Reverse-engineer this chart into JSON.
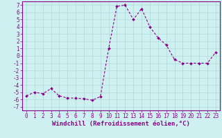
{
  "x": [
    0,
    1,
    2,
    3,
    4,
    5,
    6,
    7,
    8,
    9,
    10,
    11,
    12,
    13,
    14,
    15,
    16,
    17,
    18,
    19,
    20,
    21,
    22,
    23
  ],
  "y": [
    -5.5,
    -5.0,
    -5.2,
    -4.5,
    -5.5,
    -5.8,
    -5.8,
    -5.9,
    -6.1,
    -5.6,
    1.0,
    6.8,
    7.0,
    5.0,
    6.5,
    4.0,
    2.5,
    1.5,
    -0.5,
    -1.0,
    -1.0,
    -1.0,
    -1.0,
    0.5
  ],
  "line_color": "#8B008B",
  "marker": "D",
  "marker_size": 2.0,
  "bg_color": "#cff0f0",
  "grid_color": "#b0d8d8",
  "xlabel": "Windchill (Refroidissement éolien,°C)",
  "xlabel_fontsize": 6.5,
  "xticks": [
    0,
    1,
    2,
    3,
    4,
    5,
    6,
    7,
    8,
    9,
    10,
    11,
    12,
    13,
    14,
    15,
    16,
    17,
    18,
    19,
    20,
    21,
    22,
    23
  ],
  "yticks": [
    -7,
    -6,
    -5,
    -4,
    -3,
    -2,
    -1,
    0,
    1,
    2,
    3,
    4,
    5,
    6,
    7
  ],
  "ylim": [
    -7.5,
    7.5
  ],
  "xlim": [
    -0.5,
    23.5
  ],
  "tick_fontsize": 5.5
}
